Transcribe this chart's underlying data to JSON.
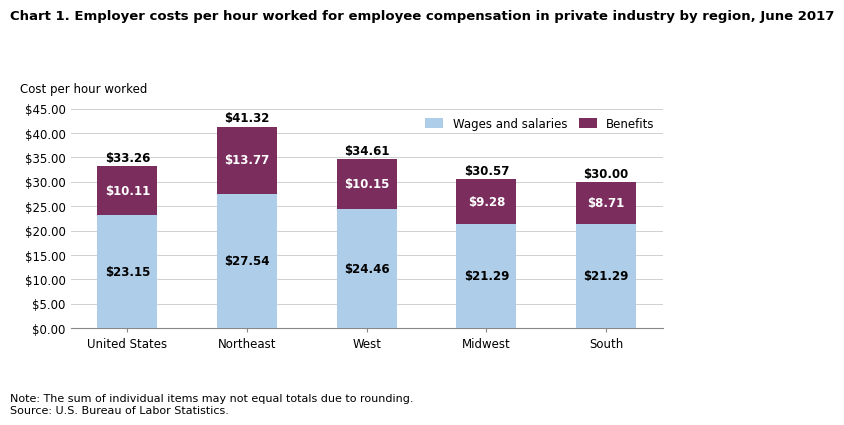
{
  "title": "Chart 1. Employer costs per hour worked for employee compensation in private industry by region, June 2017",
  "axis_label": "Cost per hour worked",
  "categories": [
    "United States",
    "Northeast",
    "West",
    "Midwest",
    "South"
  ],
  "wages": [
    23.15,
    27.54,
    24.46,
    21.29,
    21.29
  ],
  "benefits": [
    10.11,
    13.77,
    10.15,
    9.28,
    8.71
  ],
  "totals": [
    33.26,
    41.32,
    34.61,
    30.57,
    30.0
  ],
  "wages_color": "#aecde8",
  "benefits_color": "#7b2d5e",
  "wages_label": "Wages and salaries",
  "benefits_label": "Benefits",
  "ylim": [
    0,
    45
  ],
  "yticks": [
    0,
    5,
    10,
    15,
    20,
    25,
    30,
    35,
    40,
    45
  ],
  "note_line1": "Note: The sum of individual items may not equal totals due to rounding.",
  "note_line2": "Source: U.S. Bureau of Labor Statistics.",
  "title_fontsize": 9.5,
  "axis_label_fontsize": 8.5,
  "tick_fontsize": 8.5,
  "bar_label_fontsize": 8.5,
  "total_label_fontsize": 8.5,
  "legend_fontsize": 8.5,
  "note_fontsize": 8,
  "bar_width": 0.5,
  "background_color": "#ffffff",
  "grid_color": "#d0d0d0"
}
